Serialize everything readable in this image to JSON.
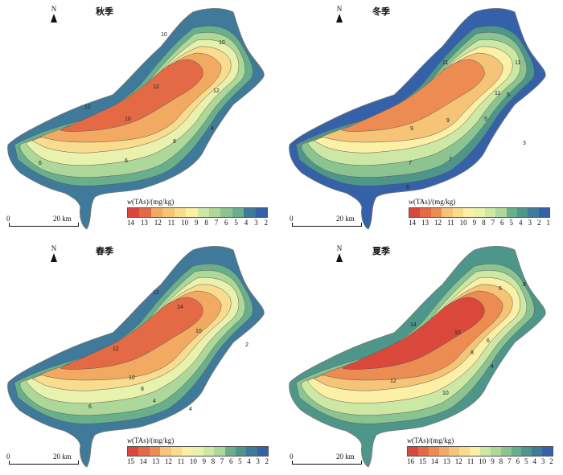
{
  "legend_title_var": "w",
  "legend_title_rest": "(TAs)/(mg/kg)",
  "north_label": "N",
  "scale": {
    "start": "0",
    "end": "20 km"
  },
  "panels": [
    {
      "season": "秋季",
      "ticks": [
        "14",
        "13",
        "12",
        "11",
        "10",
        "9",
        "8",
        "7",
        "6",
        "5",
        "4",
        "3",
        "2"
      ],
      "contour_labels": [
        "12",
        "10",
        "10",
        "12",
        "12",
        "10",
        "8",
        "6",
        "6",
        "4"
      ]
    },
    {
      "season": "冬季",
      "ticks": [
        "14",
        "13",
        "12",
        "11",
        "10",
        "9",
        "8",
        "7",
        "6",
        "5",
        "4",
        "3",
        "2",
        "1"
      ],
      "contour_labels": [
        "11",
        "11",
        "9",
        "9",
        "7",
        "7",
        "5",
        "3",
        "5",
        "5",
        "11"
      ]
    },
    {
      "season": "春季",
      "ticks": [
        "15",
        "14",
        "13",
        "12",
        "11",
        "10",
        "9",
        "8",
        "7",
        "6",
        "5",
        "4",
        "3",
        "2"
      ],
      "contour_labels": [
        "12",
        "14",
        "10",
        "12",
        "10",
        "8",
        "6",
        "4",
        "4",
        "2"
      ]
    },
    {
      "season": "夏季",
      "ticks": [
        "16",
        "15",
        "14",
        "13",
        "12",
        "11",
        "10",
        "9",
        "8",
        "7",
        "6",
        "5",
        "4",
        "3",
        "2"
      ],
      "contour_labels": [
        "14",
        "12",
        "10",
        "10",
        "8",
        "6",
        "4",
        "6",
        "8"
      ]
    }
  ],
  "colors": {
    "ramp": [
      "#d9483b",
      "#e36a44",
      "#ec8c52",
      "#f2aa62",
      "#f6c477",
      "#f9dc8e",
      "#fbf0a5",
      "#e9f2ac",
      "#cde7a4",
      "#aed79a",
      "#8cc491",
      "#6aaf8b",
      "#4f968a",
      "#3f7a9a",
      "#3461a8"
    ],
    "outline": "#777777"
  }
}
